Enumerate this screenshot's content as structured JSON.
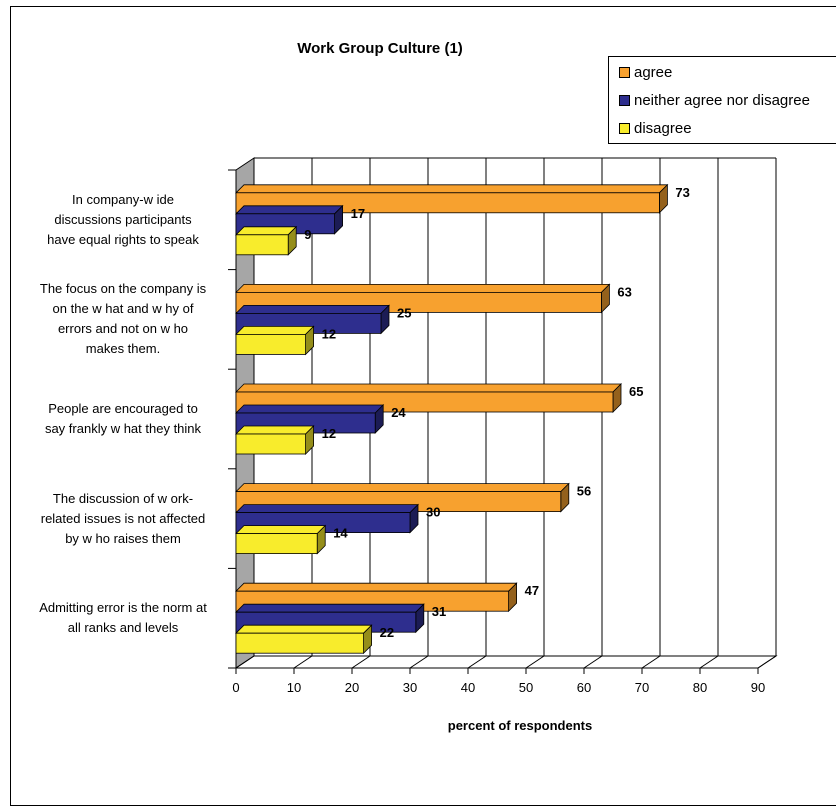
{
  "chart_data": {
    "type": "bar",
    "orientation": "horizontal",
    "title": "Work Group Culture (1)",
    "xlabel": "percent of respondents",
    "ylabel": "",
    "xlim": [
      0,
      90
    ],
    "xticks": [
      "0",
      "10",
      "20",
      "30",
      "40",
      "50",
      "60",
      "70",
      "80",
      "90"
    ],
    "grid": true,
    "legend_position": "top-right",
    "categories": [
      [
        "In company-w ide",
        "discussions participants",
        "have equal rights to speak"
      ],
      [
        "The focus on the company is",
        "on the w hat and w hy of",
        "errors and not on w ho",
        "makes them."
      ],
      [
        "People are encouraged to",
        "say frankly w hat they think"
      ],
      [
        "The discussion of w ork-",
        "related issues is not affected",
        "by w ho raises them"
      ],
      [
        "Admitting error is the norm at",
        "all ranks and levels"
      ]
    ],
    "series": [
      {
        "name": "agree",
        "color": "#F7A12F",
        "values": [
          73,
          63,
          65,
          56,
          47
        ]
      },
      {
        "name": "neither agree nor disagree",
        "color": "#2E2E8E",
        "values": [
          17,
          25,
          24,
          30,
          31
        ]
      },
      {
        "name": "disagree",
        "color": "#F8EC2C",
        "values": [
          9,
          12,
          12,
          14,
          22
        ]
      }
    ]
  }
}
